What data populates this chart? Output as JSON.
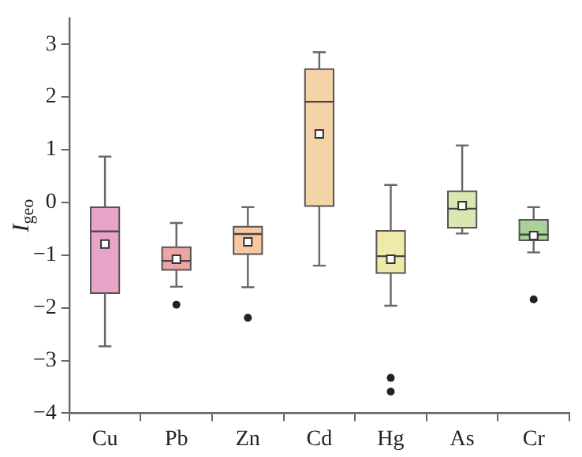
{
  "chart_data": {
    "type": "box",
    "ylabel": "I$_{geo}$",
    "categories": [
      "Cu",
      "Pb",
      "Zn",
      "Cd",
      "Hg",
      "As",
      "Cr"
    ],
    "colors": [
      "#e8a3c9",
      "#eda5a5",
      "#f7c9a3",
      "#f4d3a6",
      "#f0eaaa",
      "#d8e8b3",
      "#a9d29b"
    ],
    "boxes": [
      {
        "low": -2.73,
        "q1": -1.72,
        "median": -0.55,
        "q3": -0.09,
        "high": 0.87,
        "mean": -0.79
      },
      {
        "low": -1.6,
        "q1": -1.28,
        "median": -1.11,
        "q3": -0.85,
        "high": -0.39,
        "mean": -1.08,
        "outliers": [
          -1.94
        ]
      },
      {
        "low": -1.61,
        "q1": -0.98,
        "median": -0.6,
        "q3": -0.46,
        "high": -0.09,
        "mean": -0.75,
        "outliers": [
          -2.19
        ]
      },
      {
        "low": -1.2,
        "q1": -0.07,
        "median": 1.91,
        "q3": 2.53,
        "high": 2.85,
        "mean": 1.3
      },
      {
        "low": -1.96,
        "q1": -1.34,
        "median": -1.02,
        "q3": -0.54,
        "high": 0.33,
        "mean": -1.08,
        "outliers": [
          -3.33,
          -3.59
        ]
      },
      {
        "low": -0.59,
        "q1": -0.48,
        "median": -0.12,
        "q3": 0.21,
        "high": 1.08,
        "mean": -0.06
      },
      {
        "low": -0.95,
        "q1": -0.72,
        "median": -0.61,
        "q3": -0.33,
        "high": -0.09,
        "mean": -0.63,
        "outliers": [
          -1.84
        ]
      }
    ],
    "ylim": [
      -4,
      3.5
    ],
    "yticks": [
      -4,
      -3,
      -2,
      -1,
      0,
      1,
      2,
      3
    ],
    "grid": false,
    "legend": false
  }
}
